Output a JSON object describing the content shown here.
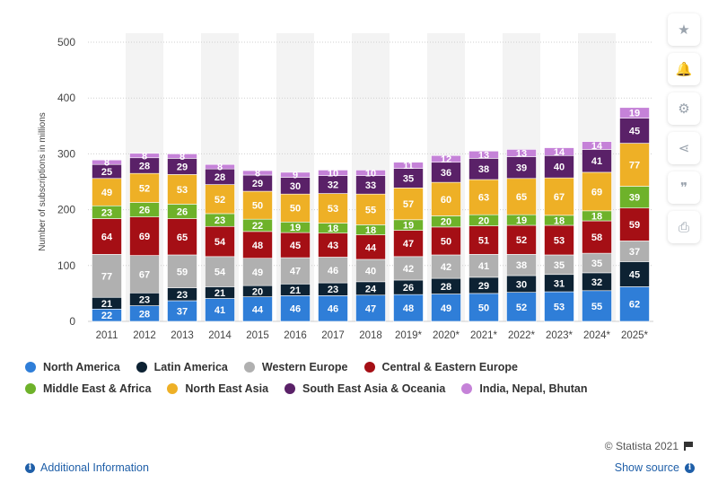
{
  "chart_data": {
    "type": "bar",
    "stacked": true,
    "ylabel": "Number of subscriptions in millions",
    "xlabel": "",
    "ylim": [
      0,
      500
    ],
    "yticks": [
      0,
      100,
      200,
      300,
      400,
      500
    ],
    "grid": true,
    "legend_position": "bottom",
    "categories": [
      "2011",
      "2012",
      "2013",
      "2014",
      "2015",
      "2016",
      "2017",
      "2018",
      "2019*",
      "2020*",
      "2021*",
      "2022*",
      "2023*",
      "2024*",
      "2025*"
    ],
    "series": [
      {
        "name": "North America",
        "color": "#2f7ed8",
        "values": [
          22,
          28,
          37,
          41,
          44,
          46,
          46,
          47,
          48,
          49,
          50,
          52,
          53,
          55,
          62
        ]
      },
      {
        "name": "Latin America",
        "color": "#0d2233",
        "values": [
          21,
          23,
          23,
          21,
          20,
          21,
          23,
          24,
          26,
          28,
          29,
          30,
          31,
          32,
          45
        ]
      },
      {
        "name": "Western Europe",
        "color": "#b0b0b0",
        "values": [
          77,
          67,
          59,
          54,
          49,
          47,
          46,
          40,
          42,
          42,
          41,
          38,
          35,
          35,
          37
        ]
      },
      {
        "name": "Central & Eastern Europe",
        "color": "#a50f15",
        "values": [
          64,
          69,
          65,
          54,
          48,
          45,
          43,
          44,
          47,
          50,
          51,
          52,
          53,
          58,
          59
        ]
      },
      {
        "name": "Middle East & Africa",
        "color": "#6eb22a",
        "values": [
          23,
          26,
          26,
          23,
          22,
          19,
          18,
          18,
          19,
          20,
          20,
          19,
          18,
          18,
          39
        ]
      },
      {
        "name": "North East Asia",
        "color": "#eeb026",
        "values": [
          49,
          52,
          53,
          52,
          50,
          50,
          53,
          55,
          57,
          60,
          63,
          65,
          67,
          69,
          77
        ]
      },
      {
        "name": "South East Asia & Oceania",
        "color": "#5a2168",
        "values": [
          25,
          28,
          29,
          28,
          29,
          30,
          32,
          33,
          35,
          36,
          38,
          39,
          40,
          41,
          45
        ]
      },
      {
        "name": "India, Nepal, Bhutan",
        "color": "#c582d8",
        "values": [
          8,
          8,
          8,
          8,
          8,
          9,
          10,
          10,
          11,
          12,
          13,
          13,
          14,
          14,
          19
        ]
      }
    ]
  },
  "legend": {
    "rows": [
      [
        {
          "label": "North America",
          "color": "#2f7ed8"
        },
        {
          "label": "Latin America",
          "color": "#0d2233"
        },
        {
          "label": "Western Europe",
          "color": "#b0b0b0"
        },
        {
          "label": "Central & Eastern Europe",
          "color": "#a50f15"
        }
      ],
      [
        {
          "label": "Middle East & Africa",
          "color": "#6eb22a"
        },
        {
          "label": "North East Asia",
          "color": "#eeb026"
        },
        {
          "label": "South East Asia & Oceania",
          "color": "#5a2168"
        },
        {
          "label": "India, Nepal, Bhutan",
          "color": "#c582d8"
        }
      ]
    ]
  },
  "sidebar": [
    {
      "icon": "star-icon",
      "glyph": "★"
    },
    {
      "icon": "bell-icon",
      "glyph": "🔔"
    },
    {
      "icon": "gear-icon",
      "glyph": "⚙"
    },
    {
      "icon": "share-icon",
      "glyph": "⋖"
    },
    {
      "icon": "quote-icon",
      "glyph": "❞"
    },
    {
      "icon": "print-icon",
      "glyph": "⎙"
    }
  ],
  "footer": {
    "credit": "© Statista 2021",
    "additional_info": "Additional Information",
    "show_source": "Show source",
    "link_color": "#1f5fa8"
  }
}
